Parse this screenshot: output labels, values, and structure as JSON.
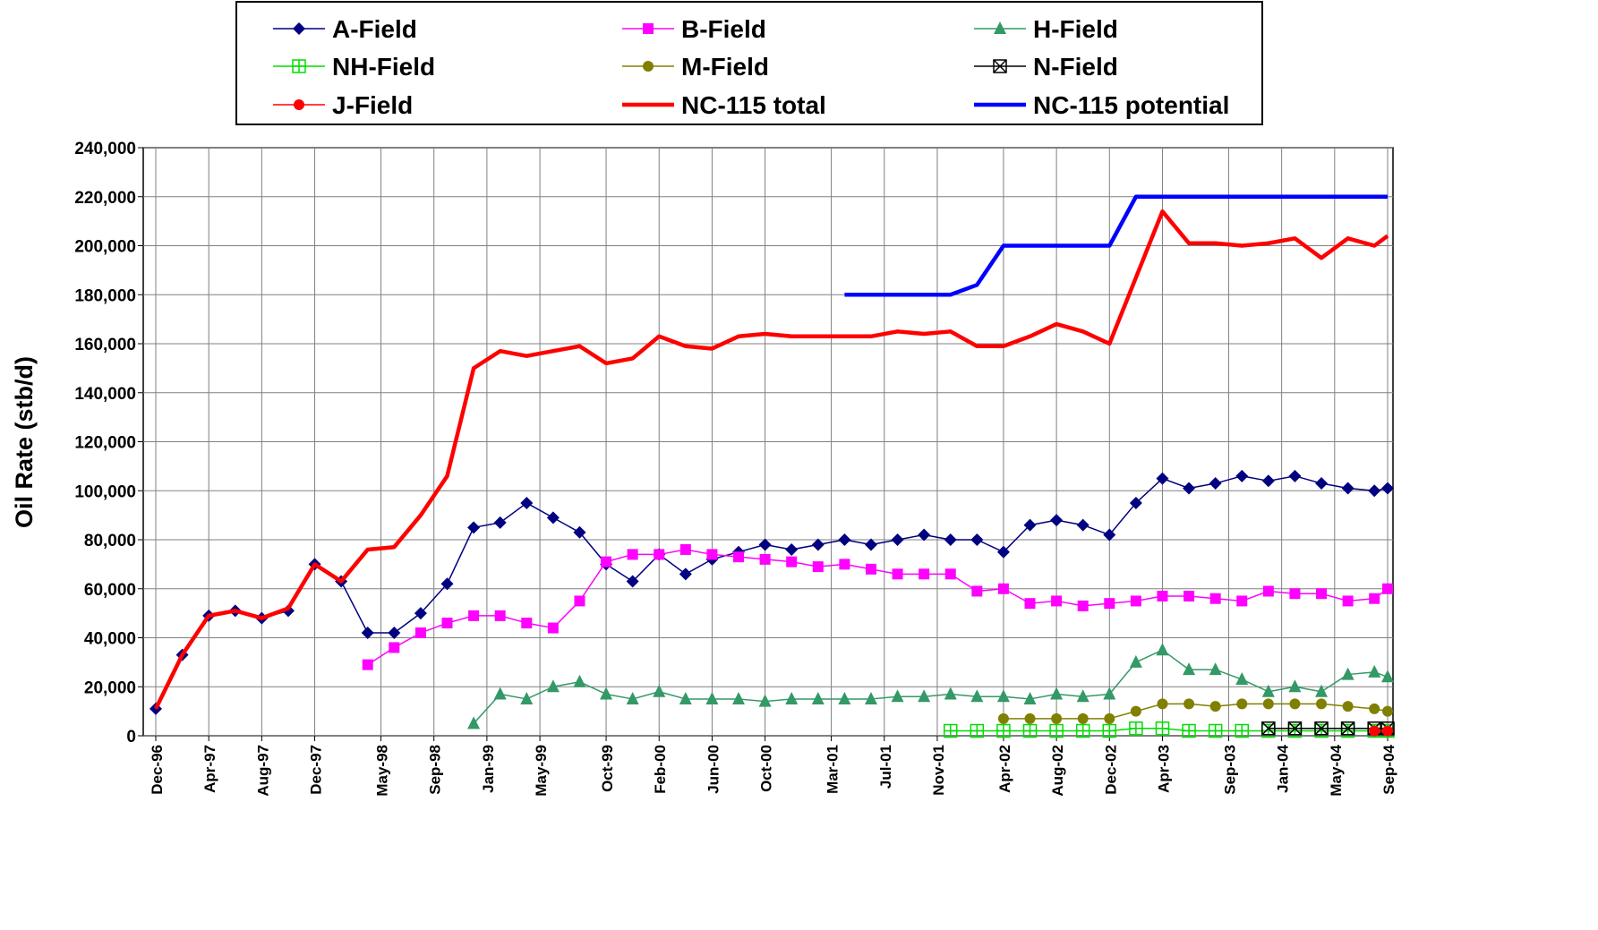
{
  "chart_data": {
    "type": "line",
    "y_label": "Oil Rate (stb/d)",
    "x": [
      "Dec-96",
      "Feb-97",
      "Apr-97",
      "Jun-97",
      "Aug-97",
      "Oct-97",
      "Dec-97",
      "Feb-98",
      "Apr-98",
      "Jun-98",
      "Aug-98",
      "Oct-98",
      "Dec-98",
      "Feb-99",
      "Apr-99",
      "Jun-99",
      "Aug-99",
      "Oct-99",
      "Dec-99",
      "Feb-00",
      "Apr-00",
      "Jun-00",
      "Aug-00",
      "Oct-00",
      "Dec-00",
      "Feb-01",
      "Apr-01",
      "Jun-01",
      "Aug-01",
      "Oct-01",
      "Dec-01",
      "Feb-02",
      "Apr-02",
      "Jun-02",
      "Aug-02",
      "Oct-02",
      "Dec-02",
      "Feb-03",
      "Apr-03",
      "Jun-03",
      "Aug-03",
      "Oct-03",
      "Dec-03",
      "Feb-04",
      "Apr-04",
      "Jun-04",
      "Aug-04",
      "Sep-04"
    ],
    "xlim": [
      "Dec-96",
      "Sep-04"
    ],
    "xticks": [
      "Dec-96",
      "Apr-97",
      "Aug-97",
      "Dec-97",
      "May-98",
      "Sep-98",
      "Jan-99",
      "May-99",
      "Oct-99",
      "Feb-00",
      "Jun-00",
      "Oct-00",
      "Mar-01",
      "Jul-01",
      "Nov-01",
      "Apr-02",
      "Aug-02",
      "Dec-02",
      "Apr-03",
      "Sep-03",
      "Jan-04",
      "May-04",
      "Sep-04"
    ],
    "ylim": [
      0,
      240000
    ],
    "yticks": [
      0,
      {
        "value": 20000,
        "label": "20,000"
      },
      {
        "value": 40000,
        "label": "40,000"
      },
      {
        "value": 60000,
        "label": "60,000"
      },
      {
        "value": 80000,
        "label": "80,000"
      },
      {
        "value": 100000,
        "label": "100,000"
      },
      {
        "value": 120000,
        "label": "120,000"
      },
      {
        "value": 140000,
        "label": "140,000"
      },
      {
        "value": 160000,
        "label": "160,000"
      },
      {
        "value": 180000,
        "label": "180,000"
      },
      {
        "value": 200000,
        "label": "200,000"
      },
      {
        "value": 220000,
        "label": "220,000"
      },
      {
        "value": 240000,
        "label": "240,000"
      }
    ],
    "grid": true,
    "legend": "top",
    "series": [
      {
        "name": "A-Field",
        "color": "#000080",
        "marker": "diamond",
        "values": [
          11000,
          33000,
          49000,
          51000,
          48000,
          51000,
          70000,
          63000,
          42000,
          42000,
          50000,
          62000,
          85000,
          87000,
          95000,
          89000,
          83000,
          70000,
          63000,
          74000,
          66000,
          72000,
          75000,
          78000,
          76000,
          78000,
          80000,
          78000,
          80000,
          82000,
          80000,
          80000,
          75000,
          86000,
          88000,
          86000,
          82000,
          95000,
          105000,
          101000,
          103000,
          106000,
          104000,
          106000,
          103000,
          101000,
          100000,
          101000
        ]
      },
      {
        "name": "B-Field",
        "color": "#ff00ff",
        "marker": "square",
        "values": [
          null,
          null,
          null,
          null,
          null,
          null,
          null,
          null,
          29000,
          36000,
          42000,
          46000,
          49000,
          49000,
          46000,
          44000,
          55000,
          71000,
          74000,
          74000,
          76000,
          74000,
          73000,
          72000,
          71000,
          69000,
          70000,
          68000,
          66000,
          66000,
          66000,
          59000,
          60000,
          54000,
          55000,
          53000,
          54000,
          55000,
          57000,
          57000,
          56000,
          55000,
          59000,
          58000,
          58000,
          55000,
          56000,
          60000
        ]
      },
      {
        "name": "H-Field",
        "color": "#339966",
        "marker": "triangle",
        "values": [
          null,
          null,
          null,
          null,
          null,
          null,
          null,
          null,
          null,
          null,
          null,
          null,
          5000,
          17000,
          15000,
          20000,
          22000,
          17000,
          15000,
          18000,
          15000,
          15000,
          15000,
          14000,
          15000,
          15000,
          15000,
          15000,
          16000,
          16000,
          17000,
          16000,
          16000,
          15000,
          17000,
          16000,
          17000,
          30000,
          35000,
          27000,
          27000,
          23000,
          18000,
          20000,
          18000,
          25000,
          26000,
          24000
        ]
      },
      {
        "name": "NH-Field",
        "color": "#00dd00",
        "marker": "square-cross",
        "values": [
          null,
          null,
          null,
          null,
          null,
          null,
          null,
          null,
          null,
          null,
          null,
          null,
          null,
          null,
          null,
          null,
          null,
          null,
          null,
          null,
          null,
          null,
          null,
          null,
          null,
          null,
          null,
          null,
          null,
          null,
          2000,
          2000,
          2000,
          2000,
          2000,
          2000,
          2000,
          3000,
          3000,
          2000,
          2000,
          2000,
          2000,
          2000,
          2000,
          2000,
          2000,
          2000
        ]
      },
      {
        "name": "M-Field",
        "color": "#808000",
        "marker": "circle",
        "values": [
          null,
          null,
          null,
          null,
          null,
          null,
          null,
          null,
          null,
          null,
          null,
          null,
          null,
          null,
          null,
          null,
          null,
          null,
          null,
          null,
          null,
          null,
          null,
          null,
          null,
          null,
          null,
          null,
          null,
          null,
          null,
          null,
          7000,
          7000,
          7000,
          7000,
          7000,
          10000,
          13000,
          13000,
          12000,
          13000,
          13000,
          13000,
          13000,
          12000,
          11000,
          10000
        ]
      },
      {
        "name": "N-Field",
        "color": "#000000",
        "marker": "square-x",
        "values": [
          null,
          null,
          null,
          null,
          null,
          null,
          null,
          null,
          null,
          null,
          null,
          null,
          null,
          null,
          null,
          null,
          null,
          null,
          null,
          null,
          null,
          null,
          null,
          null,
          null,
          null,
          null,
          null,
          null,
          null,
          null,
          null,
          null,
          null,
          null,
          null,
          null,
          null,
          null,
          null,
          null,
          null,
          3000,
          3000,
          3000,
          3000,
          3000,
          3000
        ]
      },
      {
        "name": "J-Field",
        "color": "#ff0000",
        "marker": "circle",
        "values": [
          null,
          null,
          null,
          null,
          null,
          null,
          null,
          null,
          null,
          null,
          null,
          null,
          null,
          null,
          null,
          null,
          null,
          null,
          null,
          null,
          null,
          null,
          null,
          null,
          null,
          null,
          null,
          null,
          null,
          null,
          null,
          null,
          null,
          null,
          null,
          null,
          null,
          null,
          null,
          null,
          null,
          null,
          null,
          null,
          null,
          null,
          2000,
          2000
        ]
      },
      {
        "name": "NC-115 total",
        "color": "#ff0000",
        "marker": "none",
        "values": [
          11000,
          33000,
          49000,
          51000,
          48000,
          52000,
          70000,
          63000,
          76000,
          77000,
          90000,
          106000,
          150000,
          157000,
          155000,
          157000,
          159000,
          152000,
          154000,
          163000,
          159000,
          158000,
          163000,
          164000,
          163000,
          163000,
          163000,
          163000,
          165000,
          164000,
          165000,
          159000,
          159000,
          163000,
          168000,
          165000,
          160000,
          187000,
          214000,
          201000,
          201000,
          200000,
          201000,
          203000,
          195000,
          203000,
          200000,
          204000
        ]
      },
      {
        "name": "NC-115 potential",
        "color": "#0000ff",
        "marker": "none",
        "values": [
          null,
          null,
          null,
          null,
          null,
          null,
          null,
          null,
          null,
          null,
          null,
          null,
          null,
          null,
          null,
          null,
          null,
          null,
          null,
          null,
          null,
          null,
          null,
          null,
          null,
          null,
          180000,
          180000,
          180000,
          180000,
          180000,
          184000,
          200000,
          200000,
          200000,
          200000,
          200000,
          220000,
          220000,
          220000,
          220000,
          220000,
          220000,
          220000,
          220000,
          220000,
          220000,
          220000
        ]
      }
    ]
  }
}
